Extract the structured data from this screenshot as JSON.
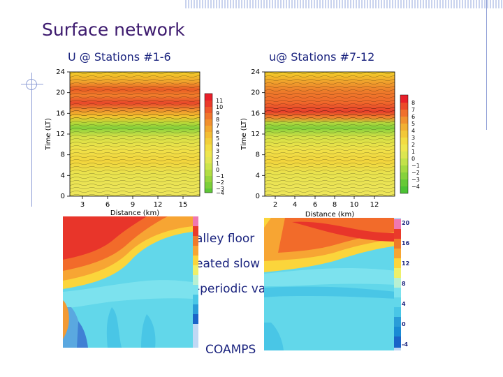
{
  "slide": {
    "title": "Surface network",
    "subtitle_left": "U @ Stations #1-6",
    "subtitle_right": "u@ Stations #7-12",
    "bullets": [
      "alley floor",
      "eated slow",
      "-periodic va"
    ],
    "coamps_label": "COAMPS"
  },
  "chart_data": [
    {
      "type": "heatmap",
      "title": "U @ Stations #1-6",
      "xlabel": "Distance (km)",
      "ylabel": "Time (LT)",
      "x_ticks": [
        "3",
        "6",
        "9",
        "12",
        "15"
      ],
      "y_ticks": [
        "0",
        "4",
        "8",
        "12",
        "16",
        "20",
        "24"
      ],
      "xlim": [
        1.5,
        17
      ],
      "ylim": [
        0,
        24
      ],
      "colorbar": [
        "11",
        "10",
        "9",
        "8",
        "7",
        "6",
        "5",
        "4",
        "3",
        "2",
        "1",
        "0",
        "−1",
        "−2",
        "−3",
        "−4"
      ]
    },
    {
      "type": "heatmap",
      "title": "u@ Stations #7-12",
      "xlabel": "Distance (km)",
      "ylabel": "Time (LT)",
      "x_ticks": [
        "2",
        "4",
        "6",
        "8",
        "10",
        "12"
      ],
      "y_ticks": [
        "0",
        "4",
        "8",
        "12",
        "16",
        "20",
        "24"
      ],
      "xlim": [
        1,
        13.6
      ],
      "ylim": [
        0,
        24
      ],
      "colorbar": [
        "8",
        "7",
        "6",
        "5",
        "4",
        "3",
        "2",
        "1",
        "0",
        "−1",
        "−2",
        "−3",
        "−4"
      ]
    },
    {
      "type": "heatmap",
      "title": "",
      "colorbar": [
        "20",
        "16",
        "12",
        "8",
        "4",
        "0",
        "-4"
      ]
    }
  ]
}
